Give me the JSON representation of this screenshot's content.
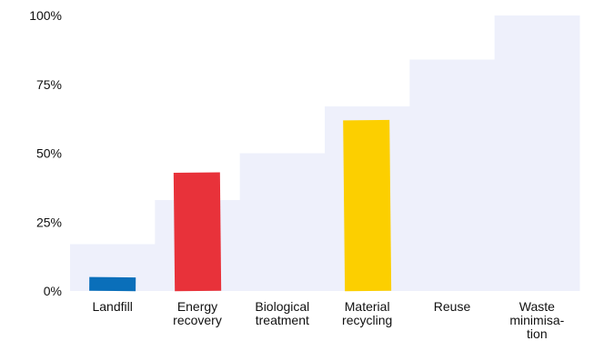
{
  "chart_data": {
    "type": "bar",
    "categories": [
      "Landfill",
      "Energy recovery",
      "Biological treatment",
      "Material recycling",
      "Reuse",
      "Waste minimisa-tion"
    ],
    "category_label_lines": [
      [
        "Landfill"
      ],
      [
        "Energy",
        "recovery"
      ],
      [
        "Biological",
        "treatment"
      ],
      [
        "Material",
        "recycling"
      ],
      [
        "Reuse"
      ],
      [
        "Waste",
        "minimisa-",
        "tion"
      ]
    ],
    "values": [
      5,
      43,
      0,
      62,
      0,
      0
    ],
    "background_steps": [
      17,
      33,
      50,
      67,
      84,
      100
    ],
    "bar_colors": [
      "#0a6fba",
      "#e8323a",
      "#f5c400",
      "#fccf00",
      "#cccccc",
      "#cccccc"
    ],
    "background_color": "#eef0fb",
    "yticks": [
      "0%",
      "25%",
      "50%",
      "75%",
      "100%"
    ],
    "ytick_values": [
      0,
      25,
      50,
      75,
      100
    ],
    "ylim": [
      0,
      100
    ],
    "title": "",
    "xlabel": "",
    "ylabel": "",
    "grid": false
  }
}
